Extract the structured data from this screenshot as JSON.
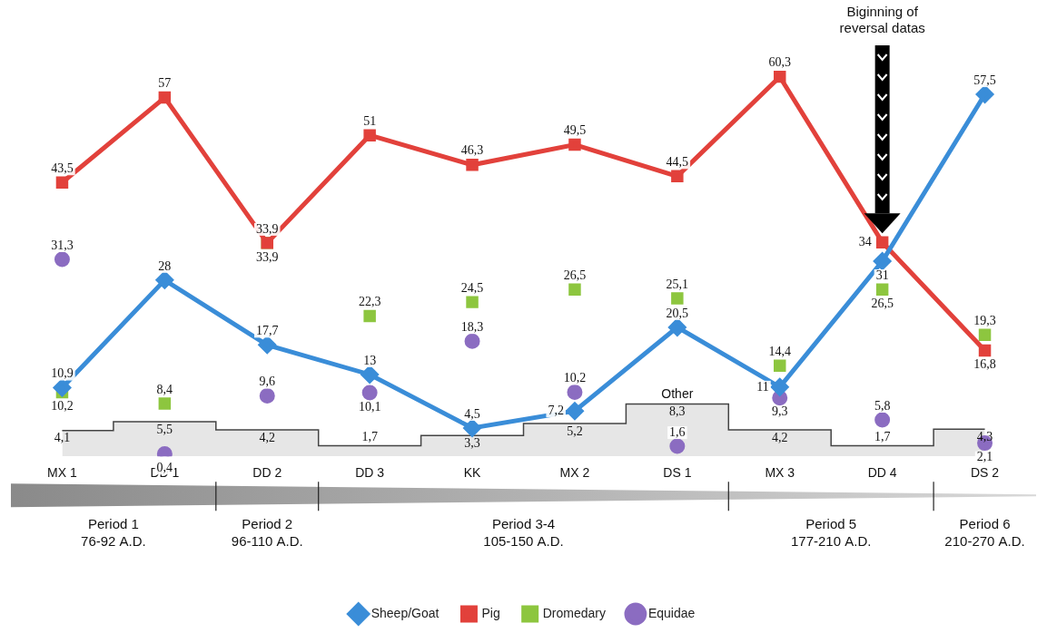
{
  "chart_data": {
    "type": "line",
    "categories": [
      "MX 1",
      "DD 1",
      "DD 2",
      "DD 3",
      "KK",
      "MX 2",
      "DS 1",
      "MX 3",
      "DD 4",
      "DS 2"
    ],
    "series": [
      {
        "name": "Sheep/Goat",
        "color": "#3a8dd8",
        "marker": "diamond",
        "line_style": "solid",
        "values": [
          10.9,
          28,
          17.7,
          13,
          4.5,
          7.2,
          20.5,
          11,
          31,
          57.5
        ],
        "value_labels": [
          "10,9",
          "28",
          "17,7",
          "13",
          "4,5",
          "7,2",
          "20,5",
          "11",
          "31",
          "57,5"
        ]
      },
      {
        "name": "Pig",
        "color": "#e2413b",
        "marker": "square",
        "line_style": "solid",
        "values": [
          43.5,
          57,
          33.9,
          51,
          46.3,
          49.5,
          44.5,
          60.3,
          34,
          16.8
        ],
        "value_labels": [
          "43,5",
          "57",
          "33,9",
          "51",
          "46,3",
          "49,5",
          "44,5",
          "60,3",
          "34",
          "16,8"
        ]
      },
      {
        "name": "Dromedary",
        "color": "#8dc63f",
        "marker": "square",
        "line_style": "none",
        "values": [
          10.2,
          8.4,
          33.9,
          22.3,
          24.5,
          26.5,
          25.1,
          14.4,
          26.5,
          19.3
        ],
        "value_labels": [
          "10,2",
          "8,4",
          "33,9",
          "22,3",
          "24,5",
          "26,5",
          "25,1",
          "14,4",
          "26,5",
          "19,3"
        ]
      },
      {
        "name": "Equidae",
        "color": "#8b6cc1",
        "marker": "circle",
        "line_style": "none",
        "values": [
          31.3,
          0.4,
          9.6,
          10.1,
          18.3,
          10.2,
          1.6,
          9.3,
          5.8,
          2.1
        ],
        "value_labels": [
          "31,3",
          "0,4",
          "9,6",
          "10,1",
          "18,3",
          "10,2",
          "1,6",
          "9,3",
          "5,8",
          "2,1"
        ]
      }
    ],
    "other": {
      "name": "Other",
      "type": "area",
      "color": "#e6e6e6",
      "values": [
        4.1,
        5.5,
        4.2,
        1.7,
        3.3,
        5.2,
        8.3,
        4.2,
        1.7,
        4.3
      ],
      "value_labels": [
        "4,1",
        "5,5",
        "4,2",
        "1,7",
        "3,3",
        "5,2",
        "8,3",
        "4,2",
        "1,7",
        "4,3"
      ]
    },
    "annotations": [
      {
        "text": "Biginning of reversal datas",
        "category": "DD 4"
      }
    ],
    "periods": [
      {
        "label": "Period 1",
        "dates": "76-92 A.D.",
        "categories": [
          "MX 1",
          "DD 1"
        ]
      },
      {
        "label": "Period 2",
        "dates": "96-110 A.D.",
        "categories": [
          "DD 2"
        ]
      },
      {
        "label": "Period 3-4",
        "dates": "105-150 A.D.",
        "categories": [
          "DD 3",
          "KK",
          "MX 2",
          "DS 1"
        ]
      },
      {
        "label": "Period 5",
        "dates": "177-210 A.D.",
        "categories": [
          "MX 3",
          "DD 4"
        ]
      },
      {
        "label": "Period 6",
        "dates": "210-270 A.D.",
        "categories": [
          "DS 2"
        ]
      }
    ],
    "ylim": [
      0,
      65
    ],
    "grid": false,
    "legend": "bottom",
    "data_labels": true,
    "tick_labels": "x"
  }
}
